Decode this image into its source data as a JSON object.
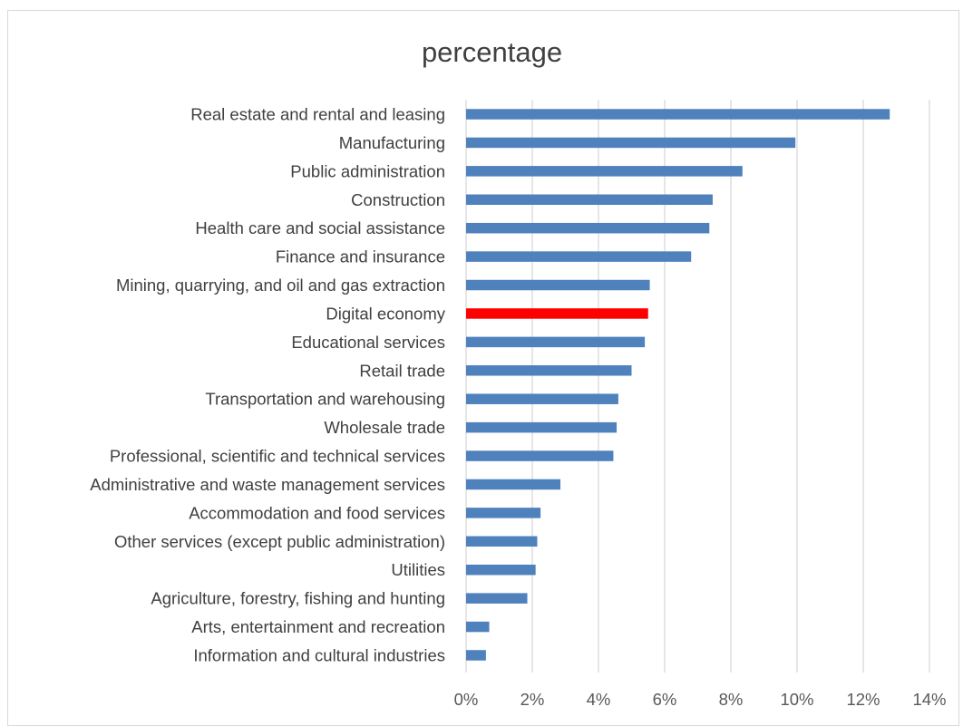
{
  "chart_data": {
    "type": "bar",
    "orientation": "horizontal",
    "title": "percentage",
    "xlabel": "",
    "ylabel": "",
    "xlim": [
      0,
      14
    ],
    "x_ticks": [
      "0%",
      "2%",
      "4%",
      "6%",
      "8%",
      "10%",
      "12%",
      "14%"
    ],
    "grid": true,
    "categories": [
      "Real estate and rental and leasing",
      "Manufacturing",
      "Public administration",
      "Construction",
      "Health care and social assistance",
      "Finance and insurance",
      "Mining, quarrying, and oil and gas extraction",
      "Digital economy",
      "Educational services",
      "Retail trade",
      "Transportation and warehousing",
      "Wholesale trade",
      "Professional, scientific and technical services",
      "Administrative and waste management services",
      "Accommodation and food services",
      "Other services (except public administration)",
      "Utilities",
      "Agriculture, forestry, fishing and hunting",
      "Arts, entertainment and recreation",
      "Information and cultural industries"
    ],
    "values": [
      12.8,
      9.95,
      8.35,
      7.45,
      7.35,
      6.8,
      5.55,
      5.5,
      5.4,
      5.0,
      4.6,
      4.55,
      4.45,
      2.85,
      2.25,
      2.15,
      2.1,
      1.85,
      0.7,
      0.6
    ],
    "colors": {
      "default": "#4f81bd",
      "highlight": "#ff0000",
      "gridline": "#d9d9d9"
    },
    "highlight_category": "Digital economy"
  }
}
